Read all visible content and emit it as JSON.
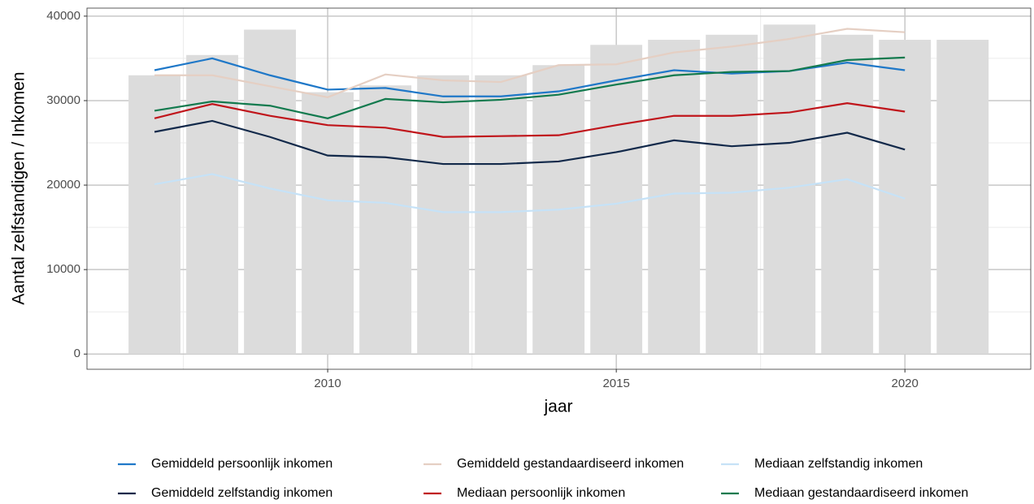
{
  "chart_data": {
    "type": "bar-line",
    "x_label": "jaar",
    "y_label": "Aantal zelfstandigen / Inkomen",
    "x": [
      2007,
      2008,
      2009,
      2010,
      2011,
      2012,
      2013,
      2014,
      2015,
      2016,
      2017,
      2018,
      2019,
      2020,
      2021
    ],
    "xlim": [
      2005.83,
      2022.18
    ],
    "xticks": [
      2010,
      2015,
      2020
    ],
    "ylim": [
      -1800,
      40950
    ],
    "yticks": [
      0,
      10000,
      20000,
      30000,
      40000
    ],
    "grid": true,
    "legend_position": "bottom",
    "bars": {
      "color": "#dcdcdc",
      "values": [
        33000,
        35400,
        38400,
        31000,
        31800,
        33000,
        33000,
        34200,
        36600,
        37200,
        37800,
        39000,
        37800,
        37200,
        37200
      ]
    },
    "series": [
      {
        "name": "Gemiddeld persoonlijk inkomen",
        "color": "#1f78c8",
        "values": [
          33600,
          35000,
          33000,
          31300,
          31500,
          30500,
          30500,
          31100,
          32400,
          33600,
          33200,
          33500,
          34500,
          33600,
          null
        ]
      },
      {
        "name": "Gemiddeld gestandaardiseerd inkomen",
        "color": "#e5cfc3",
        "values": [
          33000,
          33000,
          31700,
          30400,
          33100,
          32400,
          32200,
          34200,
          34300,
          35700,
          36400,
          37300,
          38500,
          38100,
          null
        ]
      },
      {
        "name": "Mediaan zelfstandig inkomen",
        "color": "#c6e2f7",
        "values": [
          20100,
          21300,
          19600,
          18200,
          17900,
          16800,
          16800,
          17100,
          17800,
          19000,
          19100,
          19700,
          20700,
          18400,
          null
        ]
      },
      {
        "name": "Gemiddeld zelfstandig inkomen",
        "color": "#12294a",
        "values": [
          26300,
          27600,
          25700,
          23500,
          23300,
          22500,
          22500,
          22800,
          23900,
          25300,
          24600,
          25000,
          26200,
          24200,
          null
        ]
      },
      {
        "name": "Mediaan persoonlijk inkomen",
        "color": "#c0151b",
        "values": [
          27900,
          29600,
          28200,
          27100,
          26800,
          25700,
          25800,
          25900,
          27100,
          28200,
          28200,
          28600,
          29700,
          28700,
          null
        ]
      },
      {
        "name": "Mediaan gestandaardiseerd inkomen",
        "color": "#127a4e",
        "values": [
          28800,
          29900,
          29400,
          27900,
          30200,
          29800,
          30100,
          30700,
          31900,
          33000,
          33400,
          33500,
          34800,
          35100,
          null
        ]
      }
    ]
  }
}
